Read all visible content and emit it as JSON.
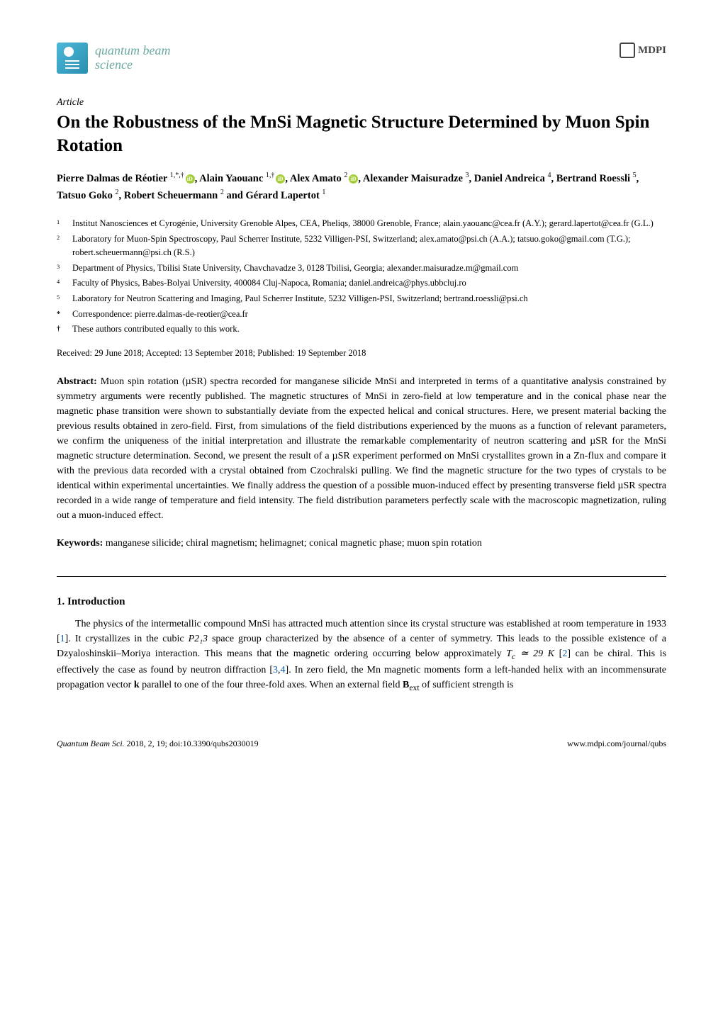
{
  "journal": {
    "name_line1": "quantum beam",
    "name_line2": "science",
    "publisher": "MDPI"
  },
  "article": {
    "type": "Article",
    "title": "On the Robustness of the MnSi Magnetic Structure Determined by Muon Spin Rotation",
    "authors_html": "Pierre Dalmas de Réotier <sup>1,*,†</sup><span class='orcid'></span>, Alain Yaouanc <sup>1,†</sup><span class='orcid'></span>, Alex Amato <sup>2</sup><span class='orcid'></span>, Alexander Maisuradze <sup>3</sup>, Daniel Andreica <sup>4</sup>, Bertrand Roessli <sup>5</sup>, Tatsuo Goko <sup>2</sup>, Robert Scheuermann <sup>2</sup> and Gérard Lapertot <sup>1</sup>"
  },
  "affiliations": [
    {
      "num": "1",
      "text": "Institut Nanosciences et Cyrogénie, University Grenoble Alpes, CEA, Pheliqs, 38000 Grenoble, France; alain.yaouanc@cea.fr (A.Y.); gerard.lapertot@cea.fr (G.L.)"
    },
    {
      "num": "2",
      "text": "Laboratory for Muon-Spin Spectroscopy, Paul Scherrer Institute, 5232 Villigen-PSI, Switzerland; alex.amato@psi.ch (A.A.); tatsuo.goko@gmail.com (T.G.); robert.scheuermann@psi.ch (R.S.)"
    },
    {
      "num": "3",
      "text": "Department of Physics, Tbilisi State University, Chavchavadze 3, 0128 Tbilisi, Georgia; alexander.maisuradze.m@gmail.com"
    },
    {
      "num": "4",
      "text": "Faculty of Physics, Babes-Bolyai University, 400084 Cluj-Napoca, Romania; daniel.andreica@phys.ubbcluj.ro"
    },
    {
      "num": "5",
      "text": "Laboratory for Neutron Scattering and Imaging, Paul Scherrer Institute, 5232 Villigen-PSI, Switzerland; bertrand.roessli@psi.ch"
    },
    {
      "num": "*",
      "text": "Correspondence: pierre.dalmas-de-reotier@cea.fr"
    },
    {
      "num": "†",
      "text": "These authors contributed equally to this work."
    }
  ],
  "dates": "Received: 29 June 2018; Accepted: 13 September 2018; Published: 19 September 2018",
  "abstract": {
    "label": "Abstract:",
    "text": " Muon spin rotation (µSR) spectra recorded for manganese silicide MnSi and interpreted in terms of a quantitative analysis constrained by symmetry arguments were recently published. The magnetic structures of MnSi in zero-field at low temperature and in the conical phase near the magnetic phase transition were shown to substantially deviate from the expected helical and conical structures. Here, we present material backing the previous results obtained in zero-field. First, from simulations of the field distributions experienced by the muons as a function of relevant parameters, we confirm the uniqueness of the initial interpretation and illustrate the remarkable complementarity of neutron scattering and µSR for the MnSi magnetic structure determination. Second, we present the result of a µSR experiment performed on MnSi crystallites grown in a Zn-flux and compare it with the previous data recorded with a crystal obtained from Czochralski pulling. We find the magnetic structure for the two types of crystals to be identical within experimental uncertainties. We finally address the question of a possible muon-induced effect by presenting transverse field µSR spectra recorded in a wide range of temperature and field intensity. The field distribution parameters perfectly scale with the macroscopic magnetization, ruling out a muon-induced effect."
  },
  "keywords": {
    "label": "Keywords:",
    "text": " manganese silicide; chiral magnetism; helimagnet; conical magnetic phase; muon spin rotation"
  },
  "section1": {
    "heading": "1. Introduction",
    "para1_before_ref1": "The physics of the intermetallic compound MnSi has attracted much attention since its crystal structure was established at room temperature in 1933 [",
    "ref1": "1",
    "para1_mid1": "]. It crystallizes in the cubic ",
    "spacegroup": "P2₁3",
    "para1_mid2": " space group characterized by the absence of a center of symmetry. This leads to the possible existence of a Dzyaloshinskii–Moriya interaction. This means that the magnetic ordering occurring below approximately ",
    "tc": "T_c ≃ 29 K",
    "para1_mid3": " [",
    "ref2": "2",
    "para1_mid4": "] can be chiral. This is effectively the case as found by neutron diffraction [",
    "ref3": "3",
    "ref_sep": ",",
    "ref4": "4",
    "para1_mid5": "]. In zero field, the Mn magnetic moments form a left-handed helix with an incommensurate propagation vector ",
    "veck": "k",
    "para1_mid6": " parallel to one of the four three-fold axes. When an external field ",
    "bext": "B",
    "bext_sub": "ext",
    "para1_end": " of sufficient strength is"
  },
  "footer": {
    "left_italic": "Quantum Beam Sci.",
    "left_rest": " 2018, 2, 19; doi:10.3390/qubs2030019",
    "right": "www.mdpi.com/journal/qubs"
  },
  "colors": {
    "link": "#0b57a8",
    "journal_name": "#6aa9a0",
    "orcid": "#a6ce39",
    "logo_gradient_start": "#4db8d8",
    "logo_gradient_end": "#2a8fb0"
  }
}
